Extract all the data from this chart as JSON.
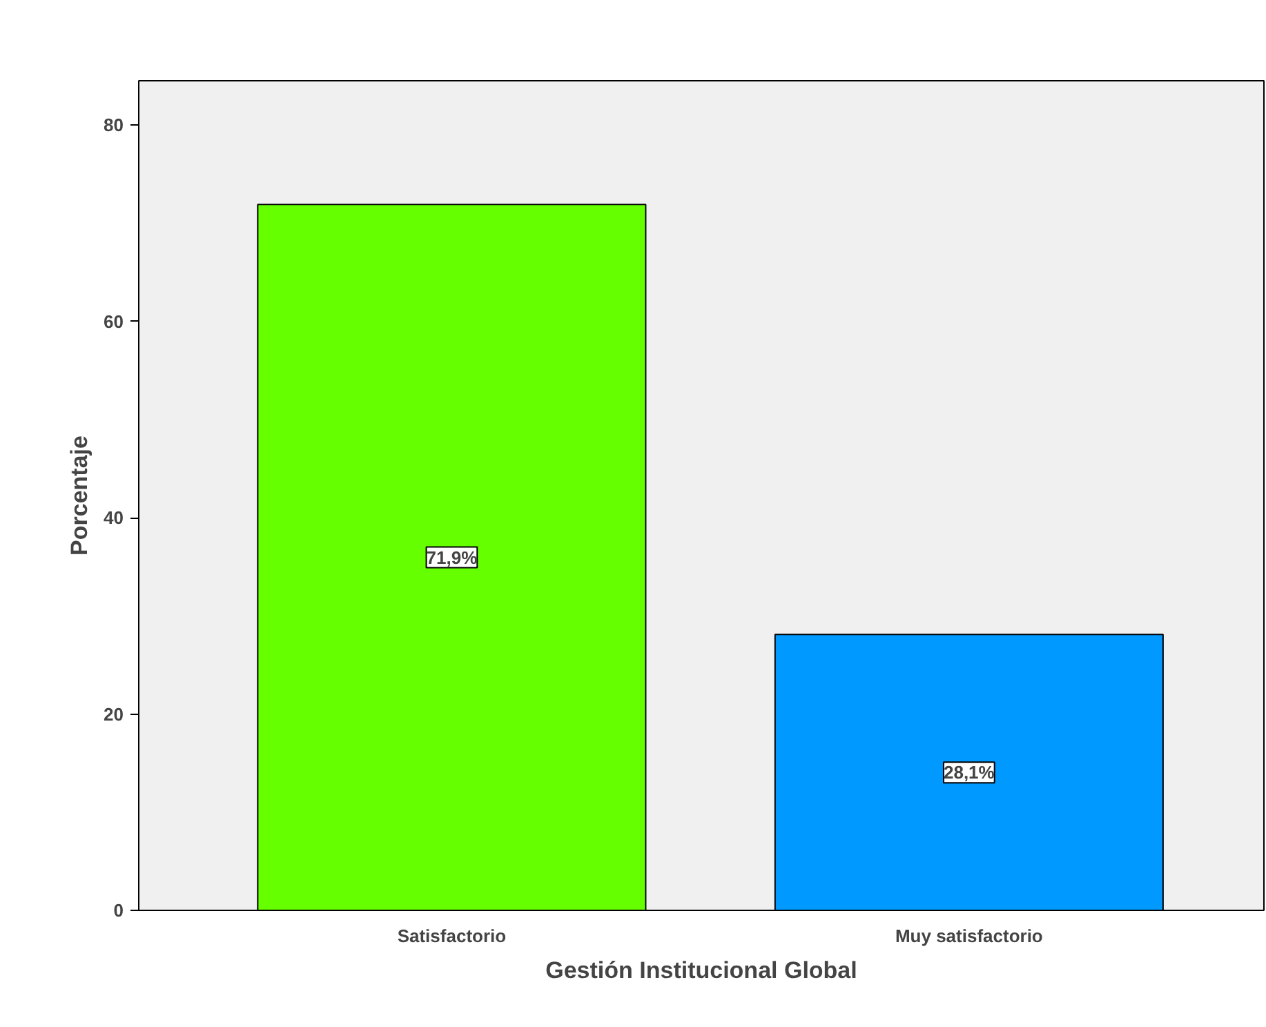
{
  "chart_data": {
    "type": "bar",
    "xlabel": "Gestión Institucional Global",
    "ylabel": "Porcentaje",
    "categories": [
      "Satisfactorio",
      "Muy satisfactorio"
    ],
    "values": [
      71.9,
      28.1
    ],
    "colors": [
      "#66ff00",
      "#0099ff"
    ],
    "value_labels": [
      "71,9%",
      "28,1%"
    ],
    "ylim": [
      0,
      84.5
    ],
    "yticks": [
      0,
      20,
      40,
      60,
      80
    ],
    "grid": false
  }
}
